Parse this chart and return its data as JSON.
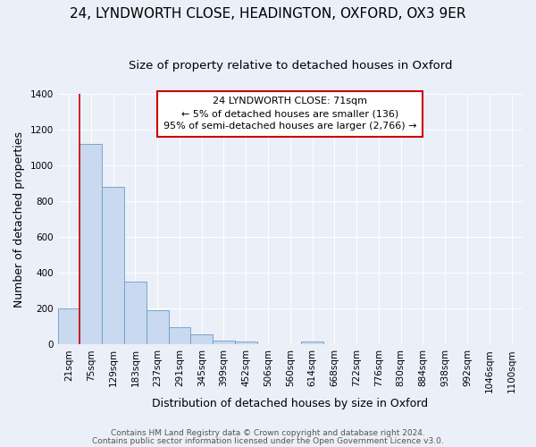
{
  "title": "24, LYNDWORTH CLOSE, HEADINGTON, OXFORD, OX3 9ER",
  "subtitle": "Size of property relative to detached houses in Oxford",
  "xlabel": "Distribution of detached houses by size in Oxford",
  "ylabel": "Number of detached properties",
  "categories": [
    "21sqm",
    "75sqm",
    "129sqm",
    "183sqm",
    "237sqm",
    "291sqm",
    "345sqm",
    "399sqm",
    "452sqm",
    "506sqm",
    "560sqm",
    "614sqm",
    "668sqm",
    "722sqm",
    "776sqm",
    "830sqm",
    "884sqm",
    "938sqm",
    "992sqm",
    "1046sqm",
    "1100sqm"
  ],
  "values": [
    200,
    1120,
    880,
    350,
    190,
    95,
    55,
    20,
    15,
    0,
    0,
    15,
    0,
    0,
    0,
    0,
    0,
    0,
    0,
    0,
    0
  ],
  "bar_color": "#c9d9ef",
  "bar_edge_color": "#6b9dc8",
  "annotation_line1": "24 LYNDWORTH CLOSE: 71sqm",
  "annotation_line2": "← 5% of detached houses are smaller (136)",
  "annotation_line3": "95% of semi-detached houses are larger (2,766) →",
  "annotation_box_edge": "#cc0000",
  "annotation_box_face": "#ffffff",
  "ylim": [
    0,
    1400
  ],
  "yticks": [
    0,
    200,
    400,
    600,
    800,
    1000,
    1200,
    1400
  ],
  "footer_line1": "Contains HM Land Registry data © Crown copyright and database right 2024.",
  "footer_line2": "Contains public sector information licensed under the Open Government Licence v3.0.",
  "bg_color": "#eaeff8",
  "plot_bg_color": "#eaeff8",
  "grid_color": "#ffffff",
  "title_fontsize": 11,
  "subtitle_fontsize": 9.5,
  "axis_label_fontsize": 9,
  "tick_fontsize": 7.5,
  "footer_fontsize": 6.5
}
